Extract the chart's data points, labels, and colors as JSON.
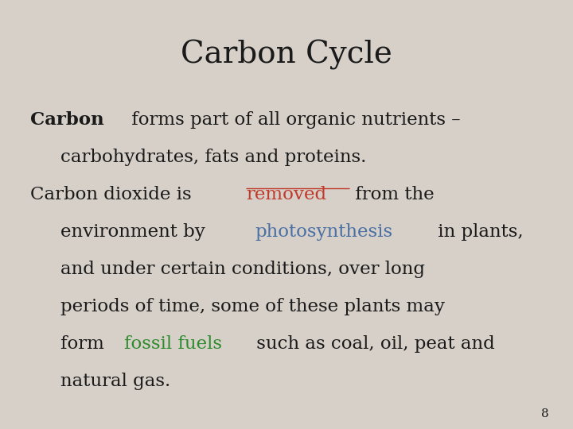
{
  "title": "Carbon Cycle",
  "background_color": "#d6d0c8",
  "title_fontsize": 28,
  "title_font": "DejaVu Serif",
  "title_color": "#1a1a1a",
  "body_fontsize": 16.5,
  "body_font": "DejaVu Serif",
  "body_color": "#1a1a1a",
  "page_number": "8",
  "lines": [
    {
      "segments": [
        {
          "text": "Carbon",
          "bold": true,
          "color": "#1a1a1a",
          "underline": false
        },
        {
          "text": " forms part of all organic nutrients –",
          "bold": false,
          "color": "#1a1a1a",
          "underline": false
        }
      ],
      "indent": 0
    },
    {
      "segments": [
        {
          "text": "carbohydrates, fats and proteins.",
          "bold": false,
          "color": "#1a1a1a",
          "underline": false
        }
      ],
      "indent": 1
    },
    {
      "segments": [
        {
          "text": "Carbon dioxide is ",
          "bold": false,
          "color": "#1a1a1a",
          "underline": false
        },
        {
          "text": "removed",
          "bold": false,
          "color": "#c0392b",
          "underline": true
        },
        {
          "text": " from the",
          "bold": false,
          "color": "#1a1a1a",
          "underline": false
        }
      ],
      "indent": 0
    },
    {
      "segments": [
        {
          "text": "environment by ",
          "bold": false,
          "color": "#1a1a1a",
          "underline": false
        },
        {
          "text": "photosynthesis",
          "bold": false,
          "color": "#4a6fa5",
          "underline": false
        },
        {
          "text": " in plants,",
          "bold": false,
          "color": "#1a1a1a",
          "underline": false
        }
      ],
      "indent": 1
    },
    {
      "segments": [
        {
          "text": "and under certain conditions, over long",
          "bold": false,
          "color": "#1a1a1a",
          "underline": false
        }
      ],
      "indent": 1
    },
    {
      "segments": [
        {
          "text": "periods of time, some of these plants may",
          "bold": false,
          "color": "#1a1a1a",
          "underline": false
        }
      ],
      "indent": 1
    },
    {
      "segments": [
        {
          "text": "form ",
          "bold": false,
          "color": "#1a1a1a",
          "underline": false
        },
        {
          "text": "fossil fuels",
          "bold": false,
          "color": "#2e8b2e",
          "underline": false
        },
        {
          "text": " such as coal, oil, peat and",
          "bold": false,
          "color": "#1a1a1a",
          "underline": false
        }
      ],
      "indent": 1
    },
    {
      "segments": [
        {
          "text": "natural gas.",
          "bold": false,
          "color": "#1a1a1a",
          "underline": false
        }
      ],
      "indent": 1
    }
  ]
}
